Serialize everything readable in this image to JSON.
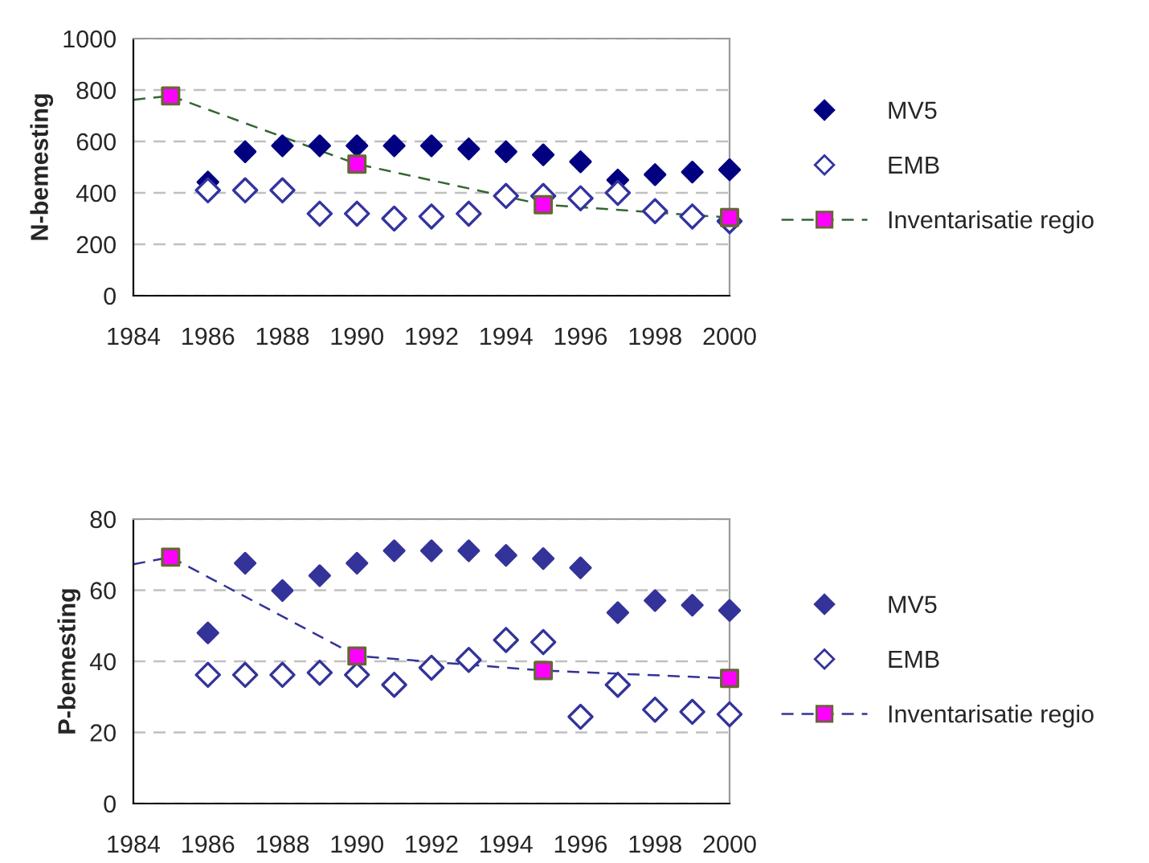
{
  "chart_data": [
    {
      "type": "scatter",
      "ylabel": "N-bemesting",
      "xlim": [
        1984,
        2000
      ],
      "xticks": [
        1984,
        1986,
        1988,
        1990,
        1992,
        1994,
        1996,
        1998,
        2000
      ],
      "ylim": [
        0,
        1000
      ],
      "yticks": [
        0,
        200,
        400,
        600,
        800,
        1000
      ],
      "grid": "y",
      "legend": "right",
      "series": [
        {
          "name": "MV5",
          "color": "#000080",
          "marker": "diamond",
          "x": [
            1986,
            1987,
            1988,
            1989,
            1990,
            1991,
            1992,
            1993,
            1994,
            1995,
            1996,
            1997,
            1998,
            1999,
            2000
          ],
          "values": [
            442,
            560,
            583,
            583,
            583,
            583,
            583,
            571,
            560,
            548,
            521,
            450,
            471,
            481,
            490
          ]
        },
        {
          "name": "EMB",
          "color": "#3333a0",
          "marker": "diamond",
          "x": [
            1986,
            1987,
            1988,
            1989,
            1990,
            1991,
            1992,
            1993,
            1994,
            1995,
            1996,
            1997,
            1998,
            1999,
            2000
          ],
          "values": [
            410,
            410,
            410,
            319,
            319,
            300,
            308,
            319,
            388,
            388,
            379,
            400,
            329,
            308,
            290
          ]
        },
        {
          "name": "Inventarisatie regio",
          "type": "line",
          "color": "#336633",
          "marker": "square",
          "line_style": "dashed",
          "x": [
            1985,
            1990,
            1995,
            2000
          ],
          "values": [
            777,
            512,
            354,
            304
          ]
        },
        {
          "type": "line",
          "color": "#336633",
          "marker": "none",
          "line_style": "dashed",
          "x": [
            1984,
            1985
          ],
          "values": [
            762,
            777
          ]
        }
      ]
    },
    {
      "type": "scatter",
      "ylabel": "P-bemesting",
      "xlim": [
        1984,
        2000
      ],
      "xticks": [
        1984,
        1986,
        1988,
        1990,
        1992,
        1994,
        1996,
        1998,
        2000
      ],
      "ylim": [
        0,
        80
      ],
      "yticks": [
        0,
        20,
        40,
        60,
        80
      ],
      "grid": "y",
      "legend": "right",
      "series": [
        {
          "name": "MV5",
          "color": "#333399",
          "marker": "diamond",
          "x": [
            1986,
            1987,
            1988,
            1989,
            1990,
            1991,
            1992,
            1993,
            1994,
            1995,
            1996,
            1997,
            1998,
            1999,
            2000
          ],
          "values": [
            48.0,
            67.6,
            59.9,
            64.1,
            67.6,
            71.1,
            71.1,
            71.1,
            69.8,
            68.9,
            66.3,
            53.7,
            57.1,
            55.8,
            54.3
          ]
        },
        {
          "name": "EMB",
          "color": "#333399",
          "marker": "diamond",
          "x": [
            1986,
            1987,
            1988,
            1989,
            1990,
            1991,
            1992,
            1993,
            1994,
            1995,
            1996,
            1997,
            1998,
            1999,
            2000
          ],
          "values": [
            36.2,
            36.2,
            36.2,
            36.8,
            36.2,
            33.4,
            38.2,
            40.4,
            46.0,
            45.4,
            24.4,
            33.4,
            26.4,
            25.8,
            25.1
          ]
        },
        {
          "name": "Inventarisatie regio",
          "type": "line",
          "color": "#333399",
          "marker": "square",
          "line_style": "dashed",
          "x": [
            1985,
            1990,
            1995,
            2000
          ],
          "values": [
            69.3,
            41.5,
            37.4,
            35.2
          ]
        },
        {
          "type": "line",
          "color": "#333399",
          "marker": "none",
          "line_style": "dashed",
          "x": [
            1984,
            1985
          ],
          "values": [
            67.3,
            69.3
          ]
        }
      ]
    }
  ]
}
